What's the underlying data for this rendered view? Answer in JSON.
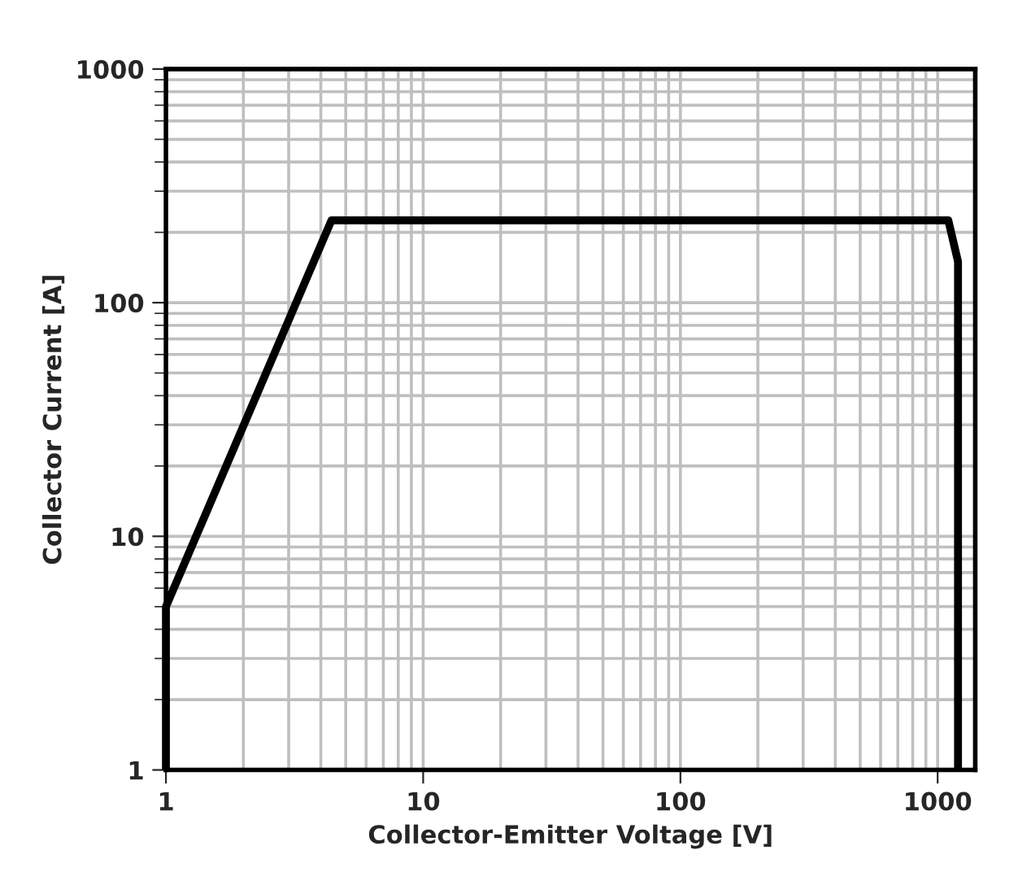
{
  "chart_data": {
    "type": "line",
    "xlabel": "Collector-Emitter Voltage [V]",
    "ylabel": "Collector Current [A]",
    "x": [
      1,
      1,
      4.4,
      1100,
      1200,
      1200
    ],
    "series": [
      {
        "color": "#000000",
        "values": [
          1,
          5,
          225,
          225,
          150,
          1
        ]
      }
    ],
    "log": "xy",
    "xlim": [
      1,
      1400
    ],
    "ylim": [
      1,
      1000
    ],
    "xticks": [
      1,
      10,
      100,
      1000
    ],
    "yticks": [
      1,
      10,
      100,
      1000
    ],
    "grid": true,
    "marker": "none",
    "line_style": "solid"
  }
}
